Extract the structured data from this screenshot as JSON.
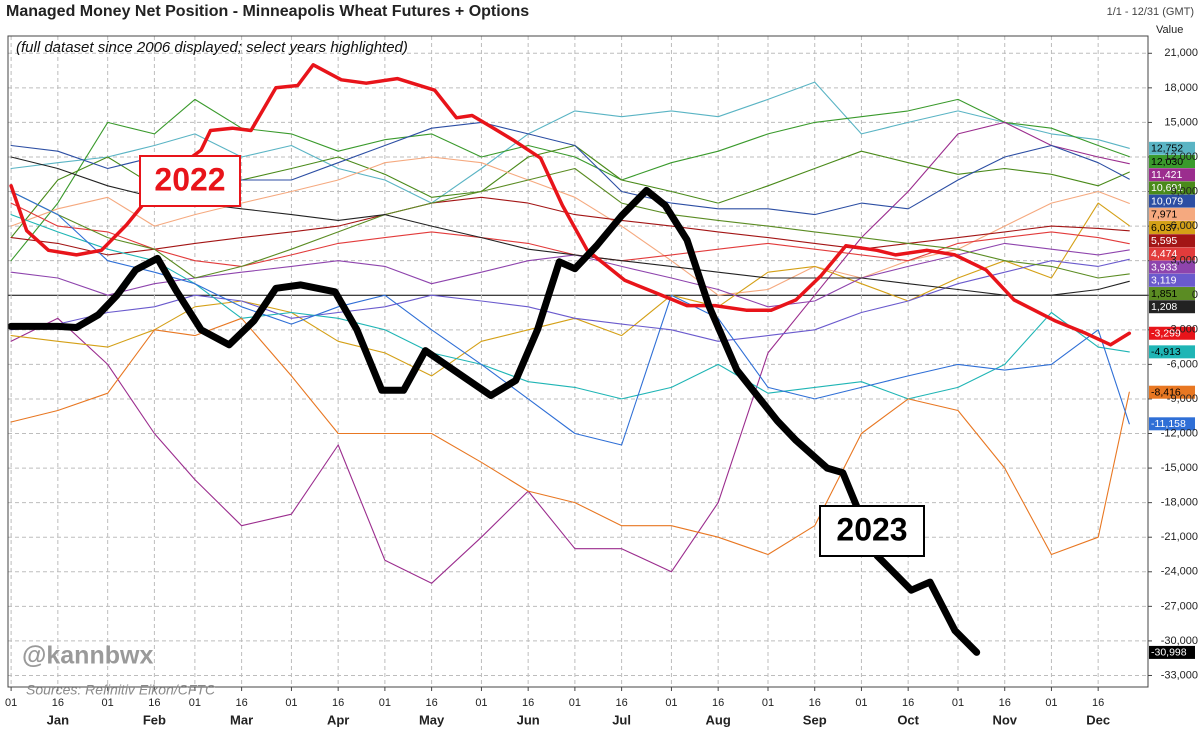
{
  "chart_data": {
    "type": "line",
    "title": "Managed Money Net Position - Minneapolis Wheat Futures + Options",
    "subtitle": "(full dataset since 2006 displayed; select years highlighted)",
    "date_range": "1/1 - 12/31 (GMT)",
    "y_axis_label": "Value",
    "watermark": "@kannbwx",
    "source": "Sources: Refinitiv Eikon/CFTC",
    "grid": true,
    "xlim": [
      0,
      366
    ],
    "ylim": [
      -34000,
      22500
    ],
    "yticks": [
      {
        "value": -33000,
        "label": "-33,000"
      },
      {
        "value": -30000,
        "label": "-30,000"
      },
      {
        "value": -27000,
        "label": "-27,000"
      },
      {
        "value": -24000,
        "label": "-24,000"
      },
      {
        "value": -21000,
        "label": "-21,000"
      },
      {
        "value": -18000,
        "label": "-18,000"
      },
      {
        "value": -15000,
        "label": "-15,000"
      },
      {
        "value": -12000,
        "label": "-12,000"
      },
      {
        "value": -9000,
        "label": "-9,000"
      },
      {
        "value": -6000,
        "label": "-6,000"
      },
      {
        "value": -3000,
        "label": "-3,000"
      },
      0,
      {
        "value": 3000,
        "label": "3,000"
      },
      {
        "value": 6000,
        "label": "6,000"
      },
      {
        "value": 9000,
        "label": "9,000"
      },
      {
        "value": 12000,
        "label": "12,000"
      },
      {
        "value": 15000,
        "label": "15,000"
      },
      {
        "value": 18000,
        "label": "18,000"
      },
      {
        "value": 21000,
        "label": "21,000"
      }
    ],
    "xticks": [
      {
        "value": 1,
        "label": "01"
      },
      {
        "value": 16,
        "label": "16"
      },
      {
        "value": 32,
        "label": "01"
      },
      {
        "value": 47,
        "label": "16"
      },
      {
        "value": 60,
        "label": "01"
      },
      {
        "value": 75,
        "label": "16"
      },
      {
        "value": 91,
        "label": "01"
      },
      {
        "value": 106,
        "label": "16"
      },
      {
        "value": 121,
        "label": "01"
      },
      {
        "value": 136,
        "label": "16"
      },
      {
        "value": 152,
        "label": "01"
      },
      {
        "value": 167,
        "label": "16"
      },
      {
        "value": 182,
        "label": "01"
      },
      {
        "value": 197,
        "label": "16"
      },
      {
        "value": 213,
        "label": "01"
      },
      {
        "value": 228,
        "label": "16"
      },
      {
        "value": 244,
        "label": "01"
      },
      {
        "value": 259,
        "label": "16"
      },
      {
        "value": 274,
        "label": "01"
      },
      {
        "value": 289,
        "label": "16"
      },
      {
        "value": 305,
        "label": "01"
      },
      {
        "value": 320,
        "label": "16"
      },
      {
        "value": 335,
        "label": "01"
      },
      {
        "value": 350,
        "label": "16"
      }
    ],
    "month_labels": [
      {
        "value": 16,
        "label": "Jan"
      },
      {
        "value": 47,
        "label": "Feb"
      },
      {
        "value": 75,
        "label": "Mar"
      },
      {
        "value": 106,
        "label": "Apr"
      },
      {
        "value": 136,
        "label": "May"
      },
      {
        "value": 167,
        "label": "Jun"
      },
      {
        "value": 197,
        "label": "Jul"
      },
      {
        "value": 228,
        "label": "Aug"
      },
      {
        "value": 259,
        "label": "Sep"
      },
      {
        "value": 289,
        "label": "Oct"
      },
      {
        "value": 320,
        "label": "Nov"
      },
      {
        "value": 350,
        "label": "Dec"
      }
    ],
    "x": [
      1,
      16,
      32,
      47,
      60,
      75,
      91,
      106,
      121,
      136,
      152,
      167,
      182,
      197,
      213,
      228,
      244,
      259,
      274,
      289,
      305,
      320,
      335,
      350,
      360
    ],
    "series": [
      {
        "color": "#5ab4c4",
        "end_label": "12,752",
        "values": [
          11000,
          11500,
          12000,
          13000,
          14000,
          12000,
          13000,
          11000,
          10000,
          8000,
          11000,
          14000,
          16000,
          15500,
          16000,
          15500,
          17000,
          18500,
          14000,
          15000,
          16000,
          15000,
          14000,
          13500,
          12752
        ]
      },
      {
        "color": "#3a9a2c",
        "end_label": "12,030",
        "values": [
          3000,
          8000,
          15000,
          14000,
          17000,
          14500,
          14000,
          12500,
          13500,
          14000,
          12000,
          13000,
          12000,
          10000,
          11500,
          12500,
          14000,
          15000,
          15500,
          16000,
          17000,
          15000,
          14500,
          13000,
          12030
        ]
      },
      {
        "color": "#9b2d8e",
        "end_label": "11,421",
        "values": [
          -4000,
          -2000,
          -6000,
          -12000,
          -16000,
          -20000,
          -19000,
          -13000,
          -23000,
          -25000,
          -21000,
          -17000,
          -22000,
          -22000,
          -24000,
          -18000,
          -5000,
          0,
          5000,
          9000,
          14000,
          15000,
          13000,
          12000,
          11421
        ]
      },
      {
        "color": "#4a8a1a",
        "end_label": "10,691",
        "values": [
          5000,
          10000,
          12000,
          9500,
          8000,
          10000,
          11000,
          12000,
          10500,
          8500,
          9000,
          12000,
          13000,
          10000,
          9000,
          8000,
          9500,
          11000,
          12500,
          11500,
          10500,
          11000,
          10500,
          9500,
          10691
        ]
      },
      {
        "color": "#2c4ea3",
        "end_label": "10,079",
        "values": [
          13000,
          12500,
          11000,
          12000,
          10500,
          10000,
          10000,
          11500,
          13000,
          14500,
          15000,
          14000,
          13000,
          9000,
          8000,
          7500,
          7500,
          7000,
          8000,
          7500,
          10000,
          12000,
          13000,
          11500,
          10079
        ]
      },
      {
        "color": "#f5a97f",
        "end_label": "7,971",
        "values": [
          6000,
          7500,
          8500,
          6000,
          7000,
          8000,
          9000,
          10000,
          11500,
          12000,
          11500,
          10000,
          8500,
          6000,
          3000,
          0,
          500,
          2500,
          1500,
          3000,
          4000,
          6000,
          8000,
          9000,
          7971
        ]
      },
      {
        "color": "#d4a017",
        "end_label": "6,037",
        "values": [
          -3500,
          -4000,
          -4500,
          -3000,
          -1000,
          -500,
          -1500,
          -4000,
          -5000,
          -7000,
          -4000,
          -3000,
          -2000,
          -3500,
          0,
          -1000,
          2000,
          2500,
          1000,
          -500,
          1500,
          3000,
          1500,
          8000,
          6037
        ]
      },
      {
        "color": "#a31515",
        "end_label": "5,595",
        "values": [
          5000,
          4500,
          3500,
          4000,
          4500,
          5000,
          5500,
          6000,
          7000,
          8000,
          8500,
          8000,
          7000,
          6500,
          6000,
          5500,
          5000,
          4500,
          4000,
          4500,
          5000,
          5500,
          6000,
          5800,
          5595
        ]
      },
      {
        "color": "#e23b3b",
        "end_label": "4,474",
        "values": [
          8000,
          6000,
          5500,
          4000,
          3000,
          2500,
          3500,
          4500,
          5000,
          5500,
          5000,
          4500,
          3500,
          3000,
          3500,
          4000,
          4500,
          4000,
          3500,
          3000,
          4500,
          5000,
          5500,
          5000,
          4474
        ]
      },
      {
        "color": "#8e44ad",
        "end_label": "3,933",
        "values": [
          2000,
          1500,
          0,
          1000,
          1500,
          2000,
          2500,
          3000,
          2500,
          1000,
          2000,
          3000,
          3500,
          2500,
          1500,
          500,
          -1000,
          -500,
          1500,
          2500,
          3500,
          4500,
          4000,
          3500,
          3933
        ]
      },
      {
        "color": "#6a5acd",
        "end_label": "3,119",
        "values": [
          -3000,
          -2500,
          -1500,
          -1000,
          0,
          -500,
          -2000,
          -1500,
          -1000,
          0,
          -500,
          -1000,
          -2000,
          -2500,
          -3000,
          -4000,
          -3500,
          -3000,
          -1500,
          -500,
          1000,
          2000,
          3000,
          2500,
          3119
        ]
      },
      {
        "color": "#5b8c23",
        "end_label": "1,851",
        "values": [
          9000,
          7000,
          5000,
          4000,
          1500,
          2500,
          4000,
          5500,
          7000,
          8000,
          9000,
          10000,
          11000,
          8000,
          7000,
          6500,
          6000,
          5500,
          5000,
          4500,
          4000,
          3000,
          2500,
          1500,
          1851
        ]
      },
      {
        "color": "#222222",
        "end_label": "1,208",
        "values": [
          12000,
          11000,
          9500,
          8500,
          8000,
          7500,
          7000,
          6500,
          7000,
          6000,
          5000,
          4000,
          3500,
          3000,
          2500,
          2000,
          1500,
          1500,
          1500,
          1000,
          500,
          0,
          0,
          500,
          1208
        ]
      },
      {
        "color": "#1fb5b5",
        "end_label": "-4,913",
        "values": [
          7000,
          5500,
          4000,
          3000,
          1000,
          -2000,
          -1500,
          -2000,
          -3000,
          -5000,
          -6000,
          -7500,
          -8000,
          -9000,
          -8000,
          -6000,
          -8500,
          -8000,
          -7500,
          -9000,
          -8000,
          -6000,
          -1500,
          -4500,
          -4913
        ]
      },
      {
        "color": "#e87722",
        "end_label": "-8,416",
        "values": [
          -11000,
          -10000,
          -8500,
          -3000,
          -3500,
          -2000,
          -7000,
          -12000,
          -12000,
          -12000,
          -14500,
          -17000,
          -18000,
          -20000,
          -20000,
          -21000,
          -22500,
          -20000,
          -12000,
          -9000,
          -10000,
          -15000,
          -22500,
          -21000,
          -8416
        ]
      },
      {
        "color": "#2f6fd6",
        "end_label": "-11,158",
        "values": [
          9000,
          7000,
          3000,
          2000,
          1000,
          -1000,
          -2500,
          -1000,
          0,
          -3000,
          -6000,
          -9000,
          -12000,
          -13000,
          0,
          -2000,
          -8000,
          -9000,
          -8000,
          -7000,
          -6000,
          -6500,
          -6000,
          -3000,
          -11158
        ]
      },
      {
        "name": "2022",
        "color": "#e8141a",
        "end_label": "-3,299",
        "x": [
          1,
          6,
          13,
          22,
          30,
          38,
          51,
          62,
          65,
          72,
          78,
          86,
          93,
          98,
          107,
          115,
          125,
          137,
          144,
          149,
          154,
          162,
          171,
          178,
          186,
          198,
          208,
          218,
          227,
          237,
          245,
          253,
          261,
          269,
          279,
          285,
          295,
          304,
          314,
          323,
          336,
          346,
          354,
          360
        ],
        "values": [
          9500,
          5600,
          3900,
          3500,
          3900,
          6100,
          10400,
          12600,
          14300,
          14500,
          14300,
          18000,
          18200,
          20000,
          18700,
          18400,
          18800,
          17800,
          15400,
          15600,
          14800,
          13500,
          11900,
          7800,
          3900,
          1300,
          200,
          -900,
          -900,
          -1300,
          -1300,
          -400,
          1700,
          4300,
          3900,
          3500,
          3900,
          3500,
          2200,
          -400,
          -2200,
          -3300,
          -4300,
          -3299
        ]
      },
      {
        "name": "2023",
        "color": "#000000",
        "end_label": "-30,998",
        "x": [
          1,
          16,
          22,
          29,
          35,
          41,
          48,
          54,
          62,
          71,
          79,
          86,
          94,
          105,
          112,
          120,
          127,
          134,
          142,
          155,
          163,
          170,
          177,
          182,
          189,
          197,
          205,
          211,
          218,
          225,
          234,
          247,
          253,
          263,
          268,
          279,
          290,
          296,
          304,
          311
        ],
        "values": [
          -2700,
          -2700,
          -2800,
          -1700,
          0,
          2200,
          3200,
          400,
          -3000,
          -4300,
          -2200,
          600,
          900,
          300,
          -3000,
          -8250,
          -8250,
          -4800,
          -6300,
          -8700,
          -7400,
          -3000,
          2900,
          2300,
          4300,
          6900,
          9100,
          7800,
          4800,
          -900,
          -6500,
          -10900,
          -12600,
          -15000,
          -15400,
          -22600,
          -25600,
          -24900,
          -29100,
          -30998
        ]
      }
    ]
  }
}
